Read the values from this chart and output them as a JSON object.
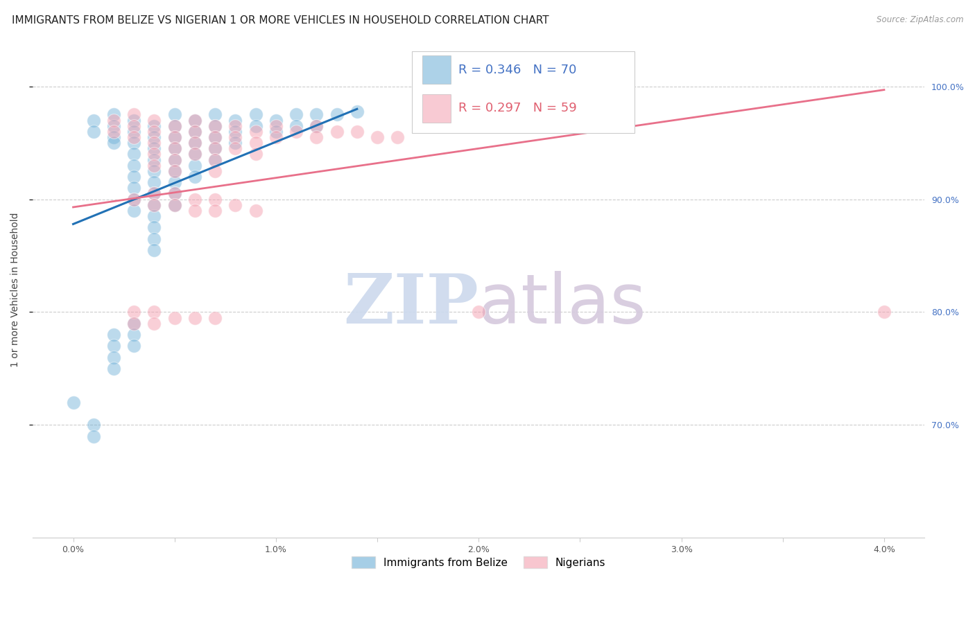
{
  "title": "IMMIGRANTS FROM BELIZE VS NIGERIAN 1 OR MORE VEHICLES IN HOUSEHOLD CORRELATION CHART",
  "source": "Source: ZipAtlas.com",
  "ylabel": "1 or more Vehicles in Household",
  "xlim": [
    -0.002,
    0.042
  ],
  "ylim": [
    0.6,
    1.04
  ],
  "x_tick_vals": [
    0.0,
    0.005,
    0.01,
    0.015,
    0.02,
    0.025,
    0.03,
    0.035,
    0.04
  ],
  "x_tick_labels": [
    "0.0%",
    "",
    "1.0%",
    "",
    "2.0%",
    "",
    "3.0%",
    "",
    "4.0%"
  ],
  "y_tick_right_vals": [
    1.0,
    0.9,
    0.8,
    0.7
  ],
  "y_tick_right_labels": [
    "100.0%",
    "90.0%",
    "80.0%",
    "70.0%"
  ],
  "belize_color": "#6baed6",
  "nigerian_color": "#f4a0b0",
  "belize_line_color": "#2171b5",
  "nigerian_line_color": "#e8708a",
  "right_tick_color": "#4472c4",
  "background_color": "#ffffff",
  "grid_color": "#cccccc",
  "belize_scatter": [
    [
      0.001,
      0.97
    ],
    [
      0.001,
      0.96
    ],
    [
      0.002,
      0.975
    ],
    [
      0.002,
      0.965
    ],
    [
      0.002,
      0.955
    ],
    [
      0.002,
      0.95
    ],
    [
      0.003,
      0.97
    ],
    [
      0.003,
      0.96
    ],
    [
      0.003,
      0.95
    ],
    [
      0.003,
      0.94
    ],
    [
      0.003,
      0.93
    ],
    [
      0.003,
      0.92
    ],
    [
      0.003,
      0.91
    ],
    [
      0.003,
      0.9
    ],
    [
      0.003,
      0.89
    ],
    [
      0.004,
      0.965
    ],
    [
      0.004,
      0.955
    ],
    [
      0.004,
      0.945
    ],
    [
      0.004,
      0.935
    ],
    [
      0.004,
      0.925
    ],
    [
      0.004,
      0.915
    ],
    [
      0.004,
      0.905
    ],
    [
      0.004,
      0.895
    ],
    [
      0.004,
      0.885
    ],
    [
      0.004,
      0.875
    ],
    [
      0.004,
      0.865
    ],
    [
      0.004,
      0.855
    ],
    [
      0.005,
      0.975
    ],
    [
      0.005,
      0.965
    ],
    [
      0.005,
      0.955
    ],
    [
      0.005,
      0.945
    ],
    [
      0.005,
      0.935
    ],
    [
      0.005,
      0.925
    ],
    [
      0.005,
      0.915
    ],
    [
      0.005,
      0.905
    ],
    [
      0.005,
      0.895
    ],
    [
      0.006,
      0.97
    ],
    [
      0.006,
      0.96
    ],
    [
      0.006,
      0.95
    ],
    [
      0.006,
      0.94
    ],
    [
      0.006,
      0.93
    ],
    [
      0.006,
      0.92
    ],
    [
      0.007,
      0.975
    ],
    [
      0.007,
      0.965
    ],
    [
      0.007,
      0.955
    ],
    [
      0.007,
      0.945
    ],
    [
      0.007,
      0.935
    ],
    [
      0.008,
      0.97
    ],
    [
      0.008,
      0.96
    ],
    [
      0.008,
      0.95
    ],
    [
      0.009,
      0.975
    ],
    [
      0.009,
      0.965
    ],
    [
      0.01,
      0.97
    ],
    [
      0.01,
      0.96
    ],
    [
      0.011,
      0.975
    ],
    [
      0.011,
      0.965
    ],
    [
      0.012,
      0.975
    ],
    [
      0.012,
      0.965
    ],
    [
      0.013,
      0.975
    ],
    [
      0.014,
      0.978
    ],
    [
      0.0,
      0.72
    ],
    [
      0.001,
      0.7
    ],
    [
      0.001,
      0.69
    ],
    [
      0.002,
      0.78
    ],
    [
      0.002,
      0.77
    ],
    [
      0.002,
      0.76
    ],
    [
      0.002,
      0.75
    ],
    [
      0.003,
      0.79
    ],
    [
      0.003,
      0.78
    ],
    [
      0.003,
      0.77
    ]
  ],
  "nigerian_scatter": [
    [
      0.002,
      0.97
    ],
    [
      0.002,
      0.96
    ],
    [
      0.003,
      0.975
    ],
    [
      0.003,
      0.965
    ],
    [
      0.003,
      0.955
    ],
    [
      0.004,
      0.97
    ],
    [
      0.004,
      0.96
    ],
    [
      0.004,
      0.95
    ],
    [
      0.004,
      0.94
    ],
    [
      0.004,
      0.93
    ],
    [
      0.005,
      0.965
    ],
    [
      0.005,
      0.955
    ],
    [
      0.005,
      0.945
    ],
    [
      0.005,
      0.935
    ],
    [
      0.005,
      0.925
    ],
    [
      0.006,
      0.97
    ],
    [
      0.006,
      0.96
    ],
    [
      0.006,
      0.95
    ],
    [
      0.006,
      0.94
    ],
    [
      0.007,
      0.965
    ],
    [
      0.007,
      0.955
    ],
    [
      0.007,
      0.945
    ],
    [
      0.007,
      0.935
    ],
    [
      0.007,
      0.925
    ],
    [
      0.008,
      0.965
    ],
    [
      0.008,
      0.955
    ],
    [
      0.008,
      0.945
    ],
    [
      0.009,
      0.96
    ],
    [
      0.009,
      0.95
    ],
    [
      0.009,
      0.94
    ],
    [
      0.01,
      0.965
    ],
    [
      0.01,
      0.955
    ],
    [
      0.011,
      0.96
    ],
    [
      0.012,
      0.965
    ],
    [
      0.012,
      0.955
    ],
    [
      0.013,
      0.96
    ],
    [
      0.014,
      0.96
    ],
    [
      0.015,
      0.955
    ],
    [
      0.016,
      0.955
    ],
    [
      0.003,
      0.9
    ],
    [
      0.004,
      0.905
    ],
    [
      0.004,
      0.895
    ],
    [
      0.005,
      0.905
    ],
    [
      0.005,
      0.895
    ],
    [
      0.006,
      0.9
    ],
    [
      0.006,
      0.89
    ],
    [
      0.007,
      0.9
    ],
    [
      0.007,
      0.89
    ],
    [
      0.008,
      0.895
    ],
    [
      0.009,
      0.89
    ],
    [
      0.003,
      0.8
    ],
    [
      0.003,
      0.79
    ],
    [
      0.004,
      0.8
    ],
    [
      0.004,
      0.79
    ],
    [
      0.005,
      0.795
    ],
    [
      0.006,
      0.795
    ],
    [
      0.007,
      0.795
    ],
    [
      0.02,
      0.8
    ],
    [
      0.04,
      0.8
    ]
  ],
  "belize_line_x": [
    0.0,
    0.014
  ],
  "belize_line_y": [
    0.878,
    0.98
  ],
  "nigerian_line_x": [
    0.0,
    0.04
  ],
  "nigerian_line_y": [
    0.893,
    0.997
  ],
  "watermark_zip_color": "#ccd9ed",
  "watermark_atlas_color": "#d5c9dd",
  "legend_R_belize": "R = 0.346",
  "legend_N_belize": "N = 70",
  "legend_R_nigerian": "R = 0.297",
  "legend_N_nigerian": "N = 59"
}
